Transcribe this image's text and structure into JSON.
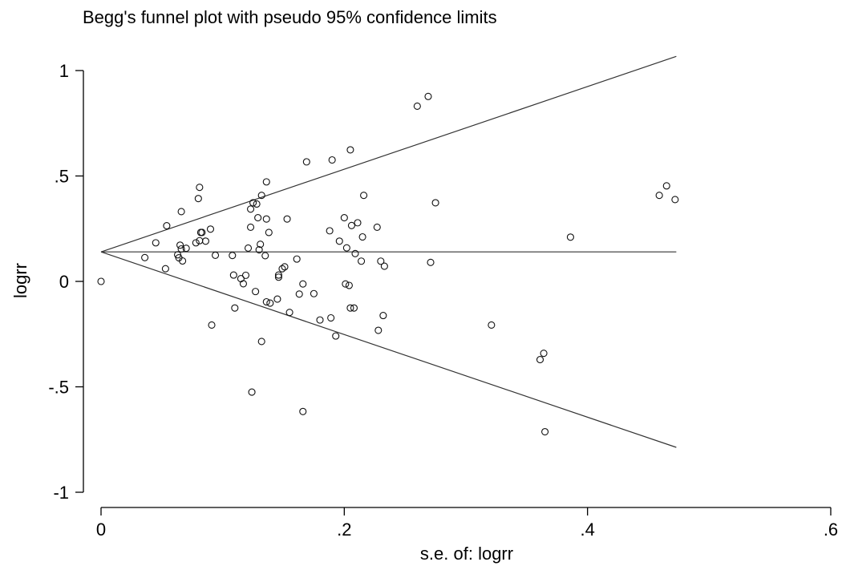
{
  "chart_data": {
    "type": "scatter",
    "title": "Begg's funnel plot with pseudo 95% confidence limits",
    "xlabel": "s.e. of: logrr",
    "ylabel": "logrr",
    "xlim": [
      0,
      0.6
    ],
    "ylim": [
      -1,
      1
    ],
    "xticks": [
      0,
      0.2,
      0.4,
      0.6
    ],
    "xtick_labels": [
      "0",
      ".2",
      ".4",
      ".6"
    ],
    "yticks": [
      1,
      0.5,
      0,
      -0.5,
      -1
    ],
    "ytick_labels": [
      "1",
      ".5",
      "0",
      "-.5",
      "-1"
    ],
    "grid": false,
    "pooled_estimate": 0.14,
    "funnel_max_se": 0.473,
    "points": [
      [
        0,
        0
      ],
      [
        0.036,
        0.113
      ],
      [
        0.045,
        0.183
      ],
      [
        0.053,
        0.06
      ],
      [
        0.054,
        0.264
      ],
      [
        0.063,
        0.126
      ],
      [
        0.064,
        0.112
      ],
      [
        0.065,
        0.172
      ],
      [
        0.066,
        0.154
      ],
      [
        0.066,
        0.331
      ],
      [
        0.067,
        0.097
      ],
      [
        0.07,
        0.157
      ],
      [
        0.078,
        0.183
      ],
      [
        0.08,
        0.393
      ],
      [
        0.081,
        0.446
      ],
      [
        0.081,
        0.193
      ],
      [
        0.082,
        0.232
      ],
      [
        0.083,
        0.232
      ],
      [
        0.086,
        0.191
      ],
      [
        0.09,
        0.248
      ],
      [
        0.091,
        -0.207
      ],
      [
        0.094,
        0.124
      ],
      [
        0.108,
        0.123
      ],
      [
        0.109,
        0.03
      ],
      [
        0.11,
        -0.126
      ],
      [
        0.115,
        0.013
      ],
      [
        0.117,
        -0.011
      ],
      [
        0.119,
        0.029
      ],
      [
        0.121,
        0.158
      ],
      [
        0.123,
        0.343
      ],
      [
        0.123,
        0.257
      ],
      [
        0.124,
        -0.525
      ],
      [
        0.125,
        0.373
      ],
      [
        0.127,
        -0.048
      ],
      [
        0.128,
        0.367
      ],
      [
        0.129,
        0.302
      ],
      [
        0.13,
        0.15
      ],
      [
        0.131,
        0.176
      ],
      [
        0.132,
        -0.285
      ],
      [
        0.132,
        0.408
      ],
      [
        0.135,
        0.122
      ],
      [
        0.136,
        0.296
      ],
      [
        0.136,
        0.472
      ],
      [
        0.136,
        -0.097
      ],
      [
        0.138,
        0.232
      ],
      [
        0.139,
        -0.103
      ],
      [
        0.145,
        -0.084
      ],
      [
        0.146,
        0.02
      ],
      [
        0.146,
        0.03
      ],
      [
        0.149,
        0.06
      ],
      [
        0.151,
        0.069
      ],
      [
        0.153,
        0.296
      ],
      [
        0.155,
        -0.147
      ],
      [
        0.161,
        0.106
      ],
      [
        0.163,
        -0.06
      ],
      [
        0.166,
        -0.012
      ],
      [
        0.166,
        -0.617
      ],
      [
        0.169,
        0.567
      ],
      [
        0.175,
        -0.058
      ],
      [
        0.18,
        -0.183
      ],
      [
        0.188,
        0.24
      ],
      [
        0.189,
        -0.173
      ],
      [
        0.19,
        0.576
      ],
      [
        0.193,
        -0.259
      ],
      [
        0.196,
        0.191
      ],
      [
        0.2,
        0.302
      ],
      [
        0.201,
        -0.012
      ],
      [
        0.202,
        0.159
      ],
      [
        0.204,
        -0.019
      ],
      [
        0.205,
        0.624
      ],
      [
        0.205,
        -0.126
      ],
      [
        0.206,
        0.265
      ],
      [
        0.208,
        -0.126
      ],
      [
        0.209,
        0.132
      ],
      [
        0.211,
        0.278
      ],
      [
        0.214,
        0.096
      ],
      [
        0.215,
        0.211
      ],
      [
        0.216,
        0.408
      ],
      [
        0.227,
        0.257
      ],
      [
        0.228,
        -0.232
      ],
      [
        0.23,
        0.096
      ],
      [
        0.232,
        -0.162
      ],
      [
        0.233,
        0.072
      ],
      [
        0.26,
        0.831
      ],
      [
        0.269,
        0.877
      ],
      [
        0.271,
        0.09
      ],
      [
        0.275,
        0.373
      ],
      [
        0.321,
        -0.207
      ],
      [
        0.361,
        -0.371
      ],
      [
        0.364,
        -0.341
      ],
      [
        0.365,
        -0.713
      ],
      [
        0.386,
        0.21
      ],
      [
        0.459,
        0.408
      ],
      [
        0.465,
        0.453
      ],
      [
        0.472,
        0.388
      ]
    ]
  }
}
